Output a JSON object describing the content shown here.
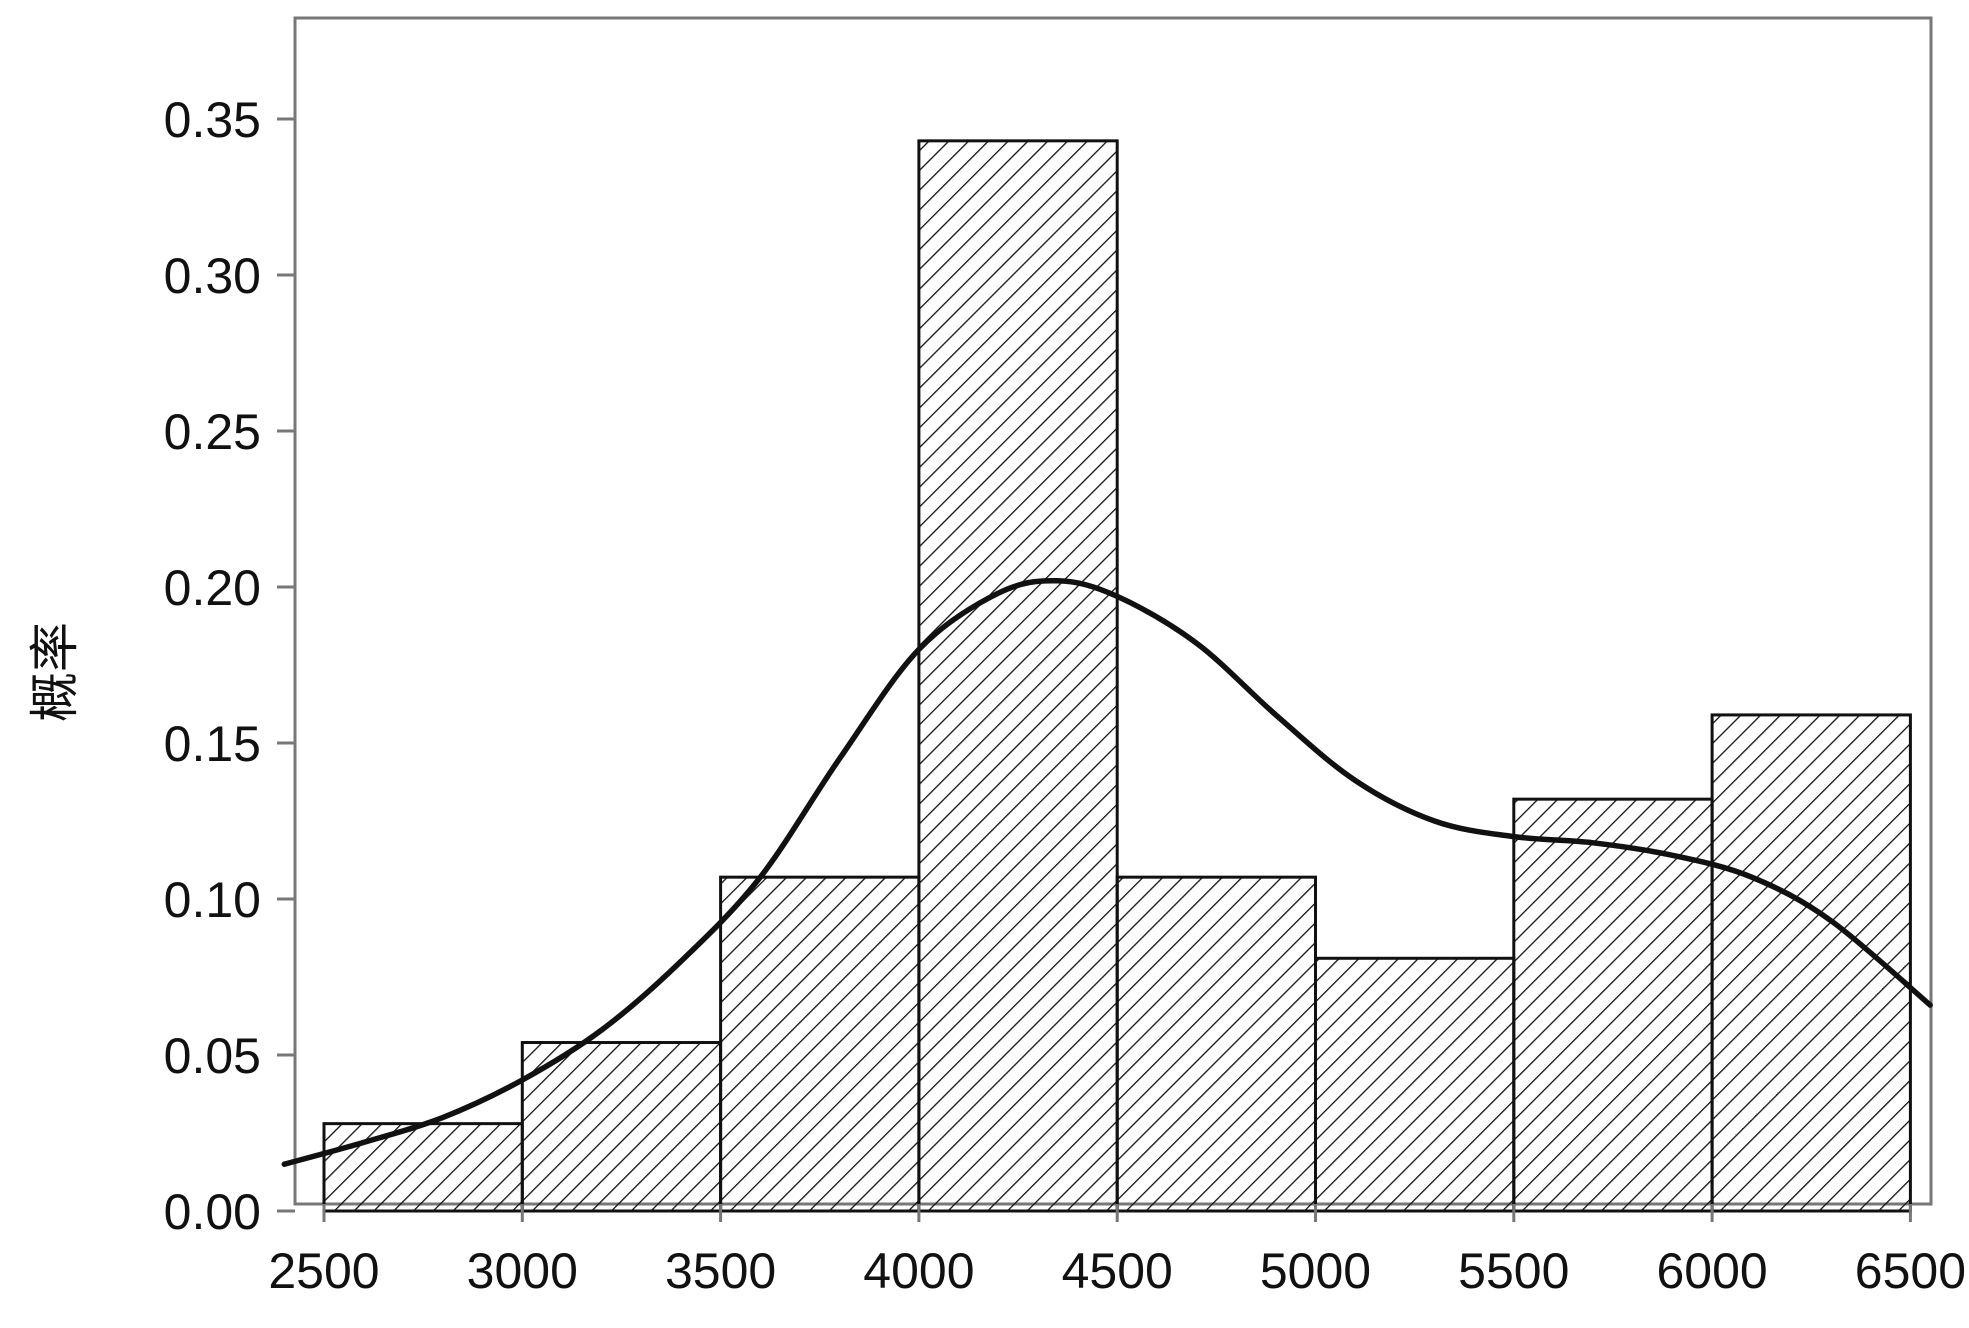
{
  "chart_data": {
    "type": "bar",
    "title": "",
    "xlabel": "",
    "ylabel": "概率",
    "bins": [
      {
        "start": 2500,
        "end": 3000,
        "value": 0.028
      },
      {
        "start": 3000,
        "end": 3500,
        "value": 0.054
      },
      {
        "start": 3500,
        "end": 4000,
        "value": 0.107
      },
      {
        "start": 4000,
        "end": 4500,
        "value": 0.343
      },
      {
        "start": 4500,
        "end": 5000,
        "value": 0.107
      },
      {
        "start": 5000,
        "end": 5500,
        "value": 0.081
      },
      {
        "start": 5500,
        "end": 6000,
        "value": 0.132
      },
      {
        "start": 6000,
        "end": 6500,
        "value": 0.159
      }
    ],
    "density_curve": {
      "x": [
        2400,
        2600,
        2800,
        3000,
        3200,
        3400,
        3600,
        3800,
        4000,
        4200,
        4350,
        4500,
        4700,
        4900,
        5100,
        5300,
        5500,
        5700,
        5900,
        6100,
        6300,
        6550
      ],
      "y": [
        0.015,
        0.022,
        0.03,
        0.042,
        0.058,
        0.08,
        0.107,
        0.145,
        0.18,
        0.198,
        0.202,
        0.197,
        0.182,
        0.159,
        0.138,
        0.125,
        0.12,
        0.118,
        0.114,
        0.107,
        0.093,
        0.066
      ]
    },
    "xlim": [
      2425,
      6580
    ],
    "ylim": [
      0,
      0.38
    ],
    "x_ticks": [
      "2500",
      "3000",
      "3500",
      "4000",
      "4500",
      "5000",
      "5500",
      "6000",
      "6500"
    ],
    "y_ticks": [
      "0.00",
      "0.05",
      "0.10",
      "0.15",
      "0.20",
      "0.25",
      "0.30",
      "0.35"
    ],
    "bar_fill": "diagonal hatch",
    "colors": {
      "bar_edge": "#111111",
      "curve": "#111111",
      "frame": "#777777",
      "background": "#ffffff"
    },
    "grid": false,
    "legend": "none"
  }
}
